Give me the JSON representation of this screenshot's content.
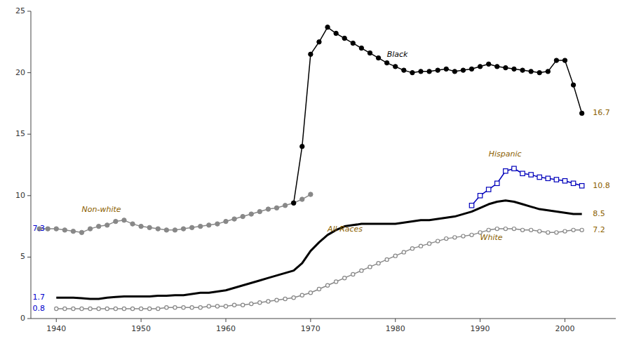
{
  "chart_data": {
    "type": "line",
    "xlim": [
      1937,
      2006
    ],
    "ylim": [
      0,
      25
    ],
    "xticks": [
      1940,
      1950,
      1960,
      1970,
      1980,
      1990,
      2000
    ],
    "yticks": [
      0,
      5,
      10,
      15,
      20,
      25
    ],
    "series": [
      {
        "color": "#888888",
        "marker": "open-circle",
        "x": [
          1940,
          1941,
          1942,
          1943,
          1944,
          1945,
          1946,
          1947,
          1948,
          1949,
          1950,
          1951,
          1952,
          1953,
          1954,
          1955,
          1956,
          1957,
          1958,
          1959,
          1960,
          1961,
          1962,
          1963,
          1964,
          1965,
          1966,
          1967,
          1968,
          1969,
          1970,
          1971,
          1972,
          1973,
          1974,
          1975,
          1976,
          1977,
          1978,
          1979,
          1980,
          1981,
          1982,
          1983,
          1984,
          1985,
          1986,
          1987,
          1988,
          1989,
          1990,
          1991,
          1992,
          1993,
          1994,
          1995,
          1996,
          1997,
          1998,
          1999,
          2000,
          2001,
          2002
        ],
        "values": [
          0.8,
          0.8,
          0.8,
          0.8,
          0.8,
          0.8,
          0.8,
          0.8,
          0.8,
          0.8,
          0.8,
          0.8,
          0.8,
          0.9,
          0.9,
          0.9,
          0.9,
          0.9,
          1.0,
          1.0,
          1.0,
          1.1,
          1.1,
          1.2,
          1.3,
          1.4,
          1.5,
          1.6,
          1.7,
          1.9,
          2.1,
          2.4,
          2.7,
          3.0,
          3.3,
          3.6,
          3.9,
          4.2,
          4.5,
          4.8,
          5.1,
          5.4,
          5.7,
          5.9,
          6.1,
          6.3,
          6.5,
          6.6,
          6.7,
          6.8,
          7.0,
          7.2,
          7.3,
          7.3,
          7.3,
          7.2,
          7.2,
          7.1,
          7.0,
          7.0,
          7.1,
          7.2,
          7.2
        ]
      },
      {
        "color": "#000000",
        "marker": "none",
        "x": [
          1940,
          1941,
          1942,
          1943,
          1944,
          1945,
          1946,
          1947,
          1948,
          1949,
          1950,
          1951,
          1952,
          1953,
          1954,
          1955,
          1956,
          1957,
          1958,
          1959,
          1960,
          1961,
          1962,
          1963,
          1964,
          1965,
          1966,
          1967,
          1968,
          1969,
          1970,
          1971,
          1972,
          1973,
          1974,
          1975,
          1976,
          1977,
          1978,
          1979,
          1980,
          1981,
          1982,
          1983,
          1984,
          1985,
          1986,
          1987,
          1988,
          1989,
          1990,
          1991,
          1992,
          1993,
          1994,
          1995,
          1996,
          1997,
          1998,
          1999,
          2000,
          2001,
          2002
        ],
        "values": [
          1.7,
          1.7,
          1.7,
          1.65,
          1.6,
          1.6,
          1.7,
          1.75,
          1.8,
          1.8,
          1.8,
          1.8,
          1.85,
          1.85,
          1.9,
          1.9,
          2.0,
          2.1,
          2.1,
          2.2,
          2.3,
          2.5,
          2.7,
          2.9,
          3.1,
          3.3,
          3.5,
          3.7,
          3.9,
          4.5,
          5.5,
          6.2,
          6.8,
          7.2,
          7.5,
          7.6,
          7.7,
          7.7,
          7.7,
          7.7,
          7.7,
          7.8,
          7.9,
          8.0,
          8.0,
          8.1,
          8.2,
          8.3,
          8.5,
          8.7,
          9.0,
          9.3,
          9.5,
          9.6,
          9.5,
          9.3,
          9.1,
          8.9,
          8.8,
          8.7,
          8.6,
          8.5,
          8.5
        ]
      },
      {
        "color": "#888888",
        "marker": "circle",
        "x": [
          1938,
          1939,
          1940,
          1941,
          1942,
          1943,
          1944,
          1945,
          1946,
          1947,
          1948,
          1949,
          1950,
          1951,
          1952,
          1953,
          1954,
          1955,
          1956,
          1957,
          1958,
          1959,
          1960,
          1961,
          1962,
          1963,
          1964,
          1965,
          1966,
          1967,
          1968,
          1969,
          1970
        ],
        "values": [
          7.3,
          7.3,
          7.3,
          7.2,
          7.1,
          7.0,
          7.3,
          7.5,
          7.6,
          7.9,
          8.0,
          7.7,
          7.5,
          7.4,
          7.3,
          7.2,
          7.2,
          7.3,
          7.4,
          7.5,
          7.6,
          7.7,
          7.9,
          8.1,
          8.3,
          8.5,
          8.7,
          8.9,
          9.0,
          9.2,
          9.4,
          9.7,
          10.1
        ]
      },
      {
        "color": "#000000",
        "marker": "circle",
        "x": [
          1968,
          1969,
          1970,
          1971,
          1972,
          1973,
          1974,
          1975,
          1976,
          1977,
          1978,
          1979,
          1980,
          1981,
          1982,
          1983,
          1984,
          1985,
          1986,
          1987,
          1988,
          1989,
          1990,
          1991,
          1992,
          1993,
          1994,
          1995,
          1996,
          1997,
          1998,
          1999,
          2000,
          2001,
          2002
        ],
        "values": [
          9.4,
          14.0,
          21.5,
          22.5,
          23.7,
          23.2,
          22.8,
          22.4,
          22.0,
          21.6,
          21.2,
          20.8,
          20.5,
          20.2,
          20.0,
          20.1,
          20.1,
          20.2,
          20.3,
          20.1,
          20.2,
          20.3,
          20.5,
          20.7,
          20.5,
          20.4,
          20.3,
          20.2,
          20.1,
          20.0,
          20.1,
          21.0,
          21.0,
          19.0,
          16.7
        ]
      },
      {
        "color": "#0000bb",
        "marker": "open-square",
        "x": [
          1989,
          1990,
          1991,
          1992,
          1993,
          1994,
          1995,
          1996,
          1997,
          1998,
          1999,
          2000,
          2001,
          2002
        ],
        "values": [
          9.2,
          10.0,
          10.5,
          11.0,
          12.0,
          12.2,
          11.8,
          11.7,
          11.5,
          11.4,
          11.3,
          11.2,
          11.0,
          10.8
        ]
      }
    ],
    "annotations": [
      {
        "text": "Non-white",
        "x": 1943,
        "y": 8.7,
        "color": "#8B6000"
      },
      {
        "text": "Black",
        "x": 1979,
        "y": 21.3,
        "color": "#000000"
      },
      {
        "text": "All Races",
        "x": 1972,
        "y": 7.1,
        "color": "#8B6000"
      },
      {
        "text": "White",
        "x": 1990,
        "y": 6.4,
        "color": "#8B6000"
      },
      {
        "text": "Hispanic",
        "x": 1991,
        "y": 13.2,
        "color": "#8B6000"
      },
      {
        "text": "16.7",
        "x": 2003.3,
        "y": 16.7,
        "color": "#8B6000"
      },
      {
        "text": "10.8",
        "x": 2003.3,
        "y": 10.8,
        "color": "#8B6000"
      },
      {
        "text": "8.5",
        "x": 2003.3,
        "y": 8.5,
        "color": "#8B6000"
      },
      {
        "text": "7.2",
        "x": 2003.3,
        "y": 7.2,
        "color": "#8B6000"
      },
      {
        "text": "7.3",
        "x": 1937.2,
        "y": 7.3,
        "color": "#0000cc"
      },
      {
        "text": "1.7",
        "x": 1937.2,
        "y": 1.7,
        "color": "#0000cc"
      },
      {
        "text": "0.8",
        "x": 1937.2,
        "y": 0.8,
        "color": "#0000cc"
      }
    ]
  }
}
